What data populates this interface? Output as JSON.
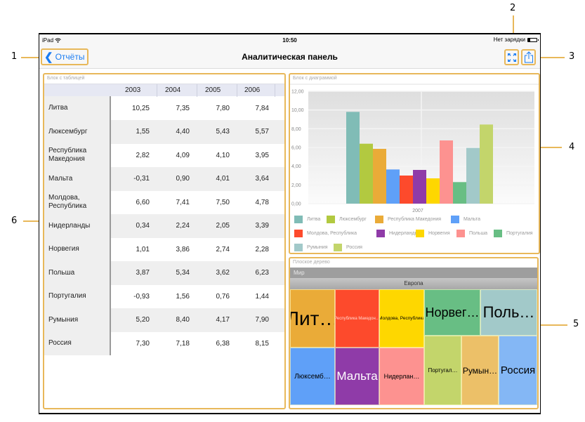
{
  "callouts": [
    "1",
    "2",
    "3",
    "4",
    "5",
    "6"
  ],
  "statusbar": {
    "device": "iPad",
    "time": "10:50",
    "battery_text": "Нет зарядки"
  },
  "navbar": {
    "back_label": "Отчёты",
    "title": "Аналитическая панель",
    "expand_icon": "expand-arrows-icon",
    "share_icon": "share-icon"
  },
  "accent_color": "#1a7cf2",
  "highlight_color": "#e8b85a",
  "table_block": {
    "caption": "Блок с таблицей",
    "columns": [
      "2003",
      "2004",
      "2005",
      "2006"
    ],
    "rows": [
      {
        "label": "Литва",
        "values": [
          "10,25",
          "7,35",
          "7,80",
          "7,84"
        ]
      },
      {
        "label": "Люксембург",
        "values": [
          "1,55",
          "4,40",
          "5,43",
          "5,57"
        ]
      },
      {
        "label": "Республика Македония",
        "values": [
          "2,82",
          "4,09",
          "4,10",
          "3,95"
        ]
      },
      {
        "label": "Мальта",
        "values": [
          "-0,31",
          "0,90",
          "4,01",
          "3,64"
        ]
      },
      {
        "label": "Молдова, Республика",
        "values": [
          "6,60",
          "7,41",
          "7,50",
          "4,78"
        ]
      },
      {
        "label": "Нидерланды",
        "values": [
          "0,34",
          "2,24",
          "2,05",
          "3,39"
        ]
      },
      {
        "label": "Норвегия",
        "values": [
          "1,01",
          "3,86",
          "2,74",
          "2,28"
        ]
      },
      {
        "label": "Польша",
        "values": [
          "3,87",
          "5,34",
          "3,62",
          "6,23"
        ]
      },
      {
        "label": "Португалия",
        "values": [
          "-0,93",
          "1,56",
          "0,76",
          "1,44"
        ]
      },
      {
        "label": "Румыния",
        "values": [
          "5,20",
          "8,40",
          "4,17",
          "7,90"
        ]
      },
      {
        "label": "Россия",
        "values": [
          "7,30",
          "7,18",
          "6,38",
          "8,15"
        ]
      }
    ]
  },
  "chart_block": {
    "caption": "Блок с диаграммой"
  },
  "chart_data": {
    "type": "bar",
    "title": "",
    "categories": [
      "2007"
    ],
    "xlabel": "",
    "ylabel": "",
    "ylim": [
      0,
      12
    ],
    "yticks": [
      "0,00",
      "2,00",
      "4,00",
      "6,00",
      "8,00",
      "10,00",
      "12,00"
    ],
    "grid": true,
    "legend_position": "bottom",
    "series": [
      {
        "name": "Литва",
        "values": [
          9.8
        ],
        "color": "#80bcb6"
      },
      {
        "name": "Люксембург",
        "values": [
          6.4
        ],
        "color": "#b2c940"
      },
      {
        "name": "Республика Македония",
        "values": [
          5.85
        ],
        "color": "#eaab38"
      },
      {
        "name": "Мальта",
        "values": [
          3.65
        ],
        "color": "#5fa0f8"
      },
      {
        "name": "Молдова, Республика",
        "values": [
          3.0
        ],
        "color": "#fd4a2c"
      },
      {
        "name": "Нидерланды",
        "values": [
          3.6
        ],
        "color": "#8f3ba8"
      },
      {
        "name": "Норвегия",
        "values": [
          2.7
        ],
        "color": "#fed700"
      },
      {
        "name": "Польша",
        "values": [
          6.75
        ],
        "color": "#fd9290"
      },
      {
        "name": "Португалия",
        "values": [
          2.3
        ],
        "color": "#68be84"
      },
      {
        "name": "Румыния",
        "values": [
          5.95
        ],
        "color": "#a2c9c9"
      },
      {
        "name": "Россия",
        "values": [
          8.45
        ],
        "color": "#c3d56b"
      }
    ]
  },
  "treemap_block": {
    "caption": "Плоское дерево",
    "root": "Мир",
    "group": "Европа",
    "cells": [
      {
        "label": "Лит…",
        "color": "#eaab38"
      },
      {
        "label": "Республика Македон…",
        "color": "#fd4a2c"
      },
      {
        "label": "Молдова, Республика",
        "color": "#fed700"
      },
      {
        "label": "Норвег…",
        "color": "#68be84"
      },
      {
        "label": "Поль…",
        "color": "#a2c9c9"
      },
      {
        "label": "Люксемб…",
        "color": "#5fa0f8"
      },
      {
        "label": "Мальта",
        "color": "#8f3ba8"
      },
      {
        "label": "Нидерлан…",
        "color": "#fd9290"
      },
      {
        "label": "Португал…",
        "color": "#c3d56b"
      },
      {
        "label": "Румын…",
        "color": "#ecc068"
      },
      {
        "label": "Россия",
        "color": "#84b7f5"
      }
    ]
  }
}
